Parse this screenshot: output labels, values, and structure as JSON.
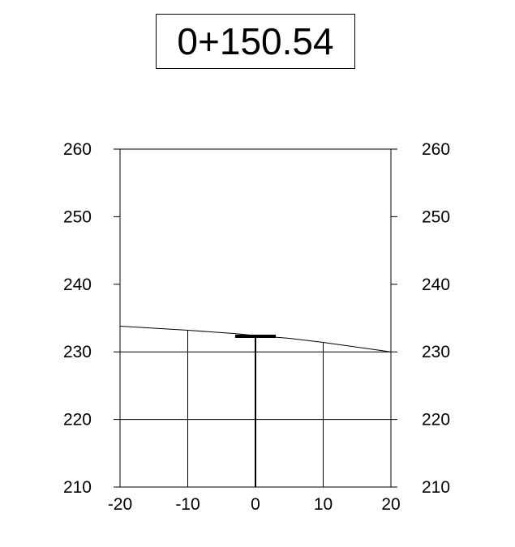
{
  "station": {
    "label": "0+150.54"
  },
  "chart_data": {
    "type": "line",
    "title": "0+150.54",
    "xlabel": "",
    "ylabel": "",
    "xlim": [
      -20,
      20
    ],
    "ylim": [
      210,
      260
    ],
    "x_ticks": [
      -20,
      -10,
      0,
      10,
      20
    ],
    "x_tick_labels": [
      "-20",
      "-10",
      "0",
      "10",
      "20"
    ],
    "y_ticks": [
      210,
      220,
      230,
      240,
      250,
      260
    ],
    "y_tick_labels_left": [
      "210",
      "220",
      "230",
      "240",
      "250",
      "260"
    ],
    "y_tick_labels_right": [
      "210",
      "220",
      "230",
      "240",
      "250",
      "260"
    ],
    "series": [
      {
        "values": [
          [
            -20,
            233.8
          ],
          [
            -10,
            233.2
          ],
          [
            -3,
            232.7
          ],
          [
            0,
            232.4
          ],
          [
            5,
            232.0
          ],
          [
            10,
            231.4
          ],
          [
            20,
            230.0
          ]
        ]
      }
    ],
    "marker": {
      "x": [
        -3,
        3
      ],
      "y": 232.3,
      "stem_x": 0,
      "stem_y": [
        210,
        232.3
      ]
    }
  }
}
